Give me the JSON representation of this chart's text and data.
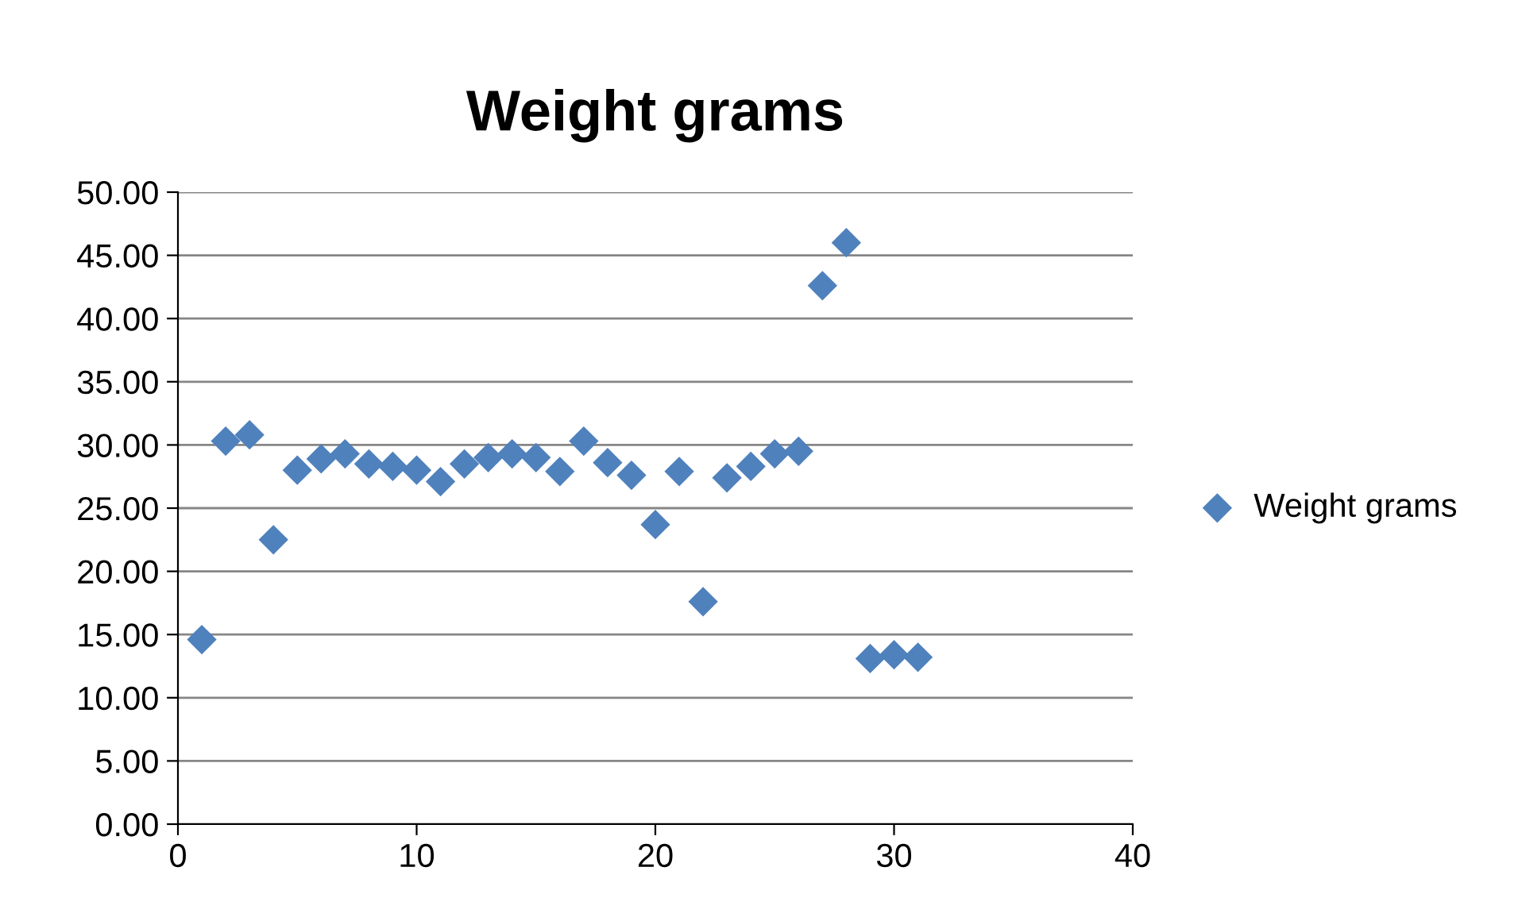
{
  "chart_data": {
    "type": "scatter",
    "title": "Weight grams",
    "x": [
      1,
      2,
      3,
      4,
      5,
      6,
      7,
      8,
      9,
      10,
      11,
      12,
      13,
      14,
      15,
      16,
      17,
      18,
      19,
      20,
      21,
      22,
      23,
      24,
      25,
      26,
      27,
      28,
      29,
      30,
      31
    ],
    "series": [
      {
        "name": "Weight grams",
        "color": "#4f81bd",
        "values": [
          14.6,
          30.3,
          30.8,
          22.5,
          28.0,
          28.9,
          29.3,
          28.5,
          28.3,
          28.0,
          27.1,
          28.5,
          29.0,
          29.3,
          29.0,
          27.9,
          30.3,
          28.6,
          27.6,
          23.7,
          27.9,
          17.6,
          27.4,
          28.3,
          29.3,
          29.5,
          42.6,
          46.0,
          13.1,
          13.4,
          13.2
        ]
      }
    ],
    "xlim": [
      0,
      40
    ],
    "xticks": [
      0,
      10,
      20,
      30,
      40
    ],
    "ylim": [
      0,
      50
    ],
    "yticks": [
      {
        "value": 0,
        "label": "0.00"
      },
      {
        "value": 5,
        "label": "5.00"
      },
      {
        "value": 10,
        "label": "10.00"
      },
      {
        "value": 15,
        "label": "15.00"
      },
      {
        "value": 20,
        "label": "20.00"
      },
      {
        "value": 25,
        "label": "25.00"
      },
      {
        "value": 30,
        "label": "30.00"
      },
      {
        "value": 35,
        "label": "35.00"
      },
      {
        "value": 40,
        "label": "40.00"
      },
      {
        "value": 45,
        "label": "45.00"
      },
      {
        "value": 50,
        "label": "50.00"
      }
    ],
    "grid": "y",
    "legend": "right",
    "marker": "diamond"
  }
}
